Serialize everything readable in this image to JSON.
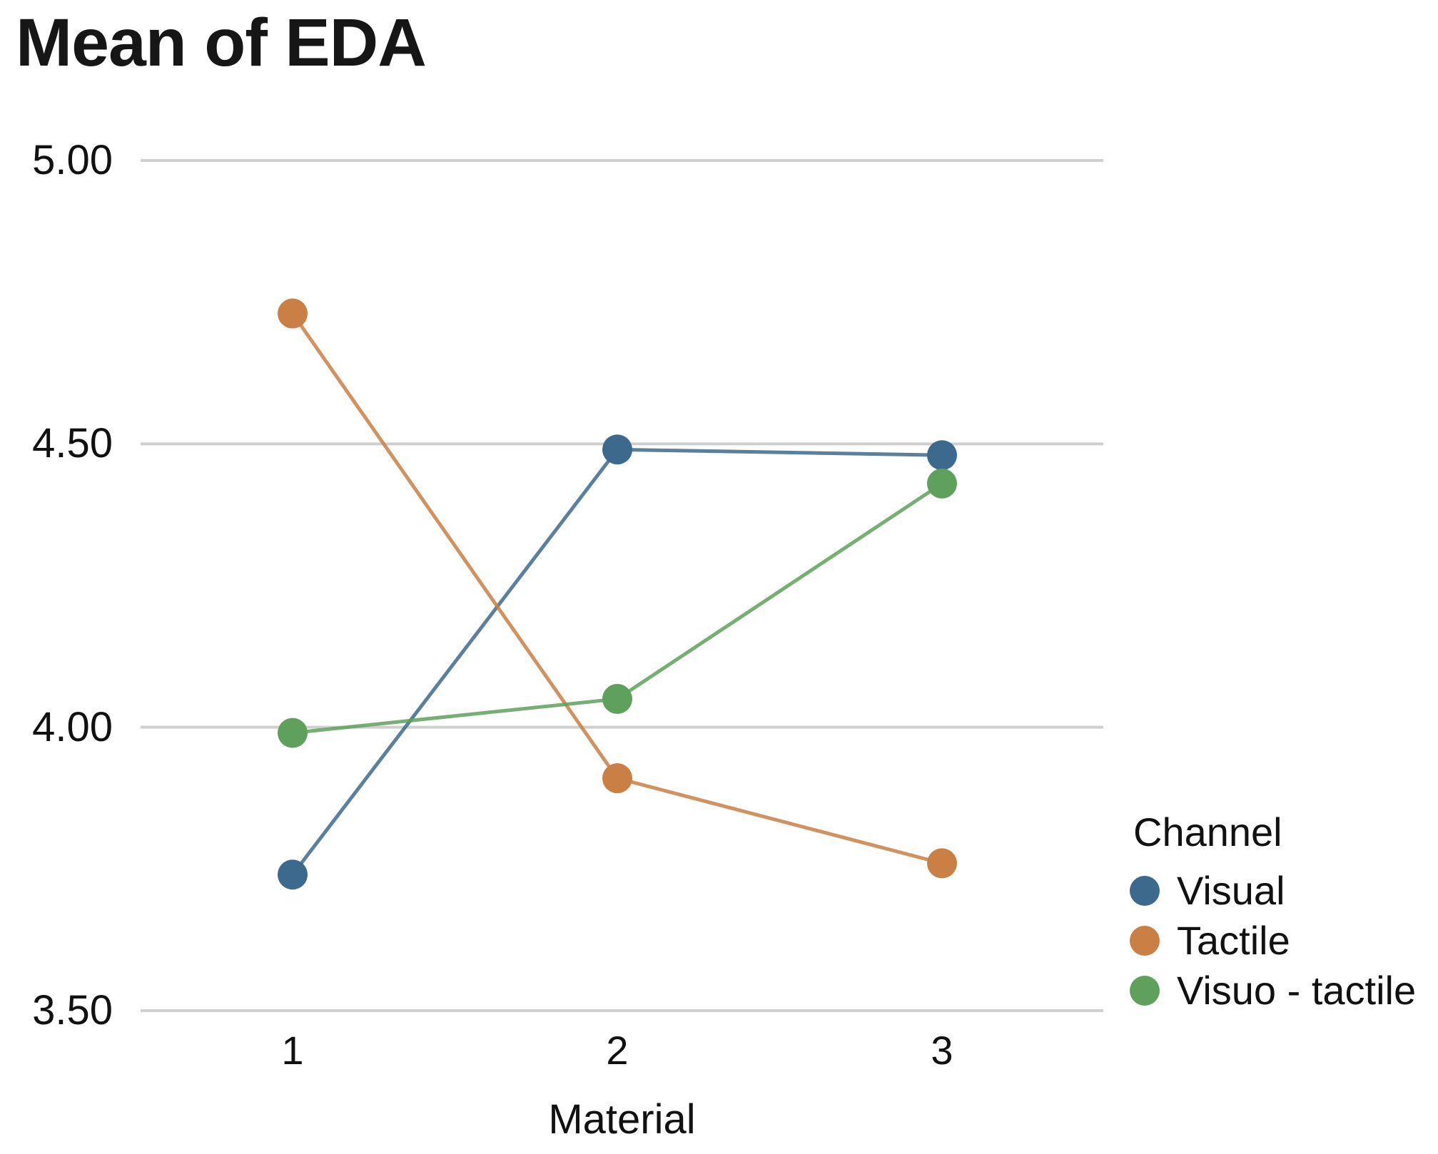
{
  "page": {
    "background": "#FFFFFF",
    "text_color": "#111111"
  },
  "chart_data": {
    "type": "line",
    "title": "Mean of EDA",
    "xlabel": "Material",
    "ylabel": "",
    "categories": [
      "1",
      "2",
      "3"
    ],
    "x": [
      1,
      2,
      3
    ],
    "yticks": [
      "5.00",
      "4.50",
      "4.00",
      "3.50"
    ],
    "ylim": [
      3.5,
      5.0
    ],
    "grid": "horizontal-only",
    "gridline_color": "#CFCFCF",
    "legend": {
      "title": "Channel",
      "position": "right"
    },
    "series": [
      {
        "name": "Visual",
        "color": "#3D6A8C",
        "values": [
          3.74,
          4.49,
          4.48
        ]
      },
      {
        "name": "Tactile",
        "color": "#CA7F44",
        "values": [
          4.73,
          3.91,
          3.76
        ]
      },
      {
        "name": "Visuo - tactile",
        "color": "#5FA05C",
        "values": [
          3.99,
          4.05,
          4.43
        ]
      }
    ]
  }
}
